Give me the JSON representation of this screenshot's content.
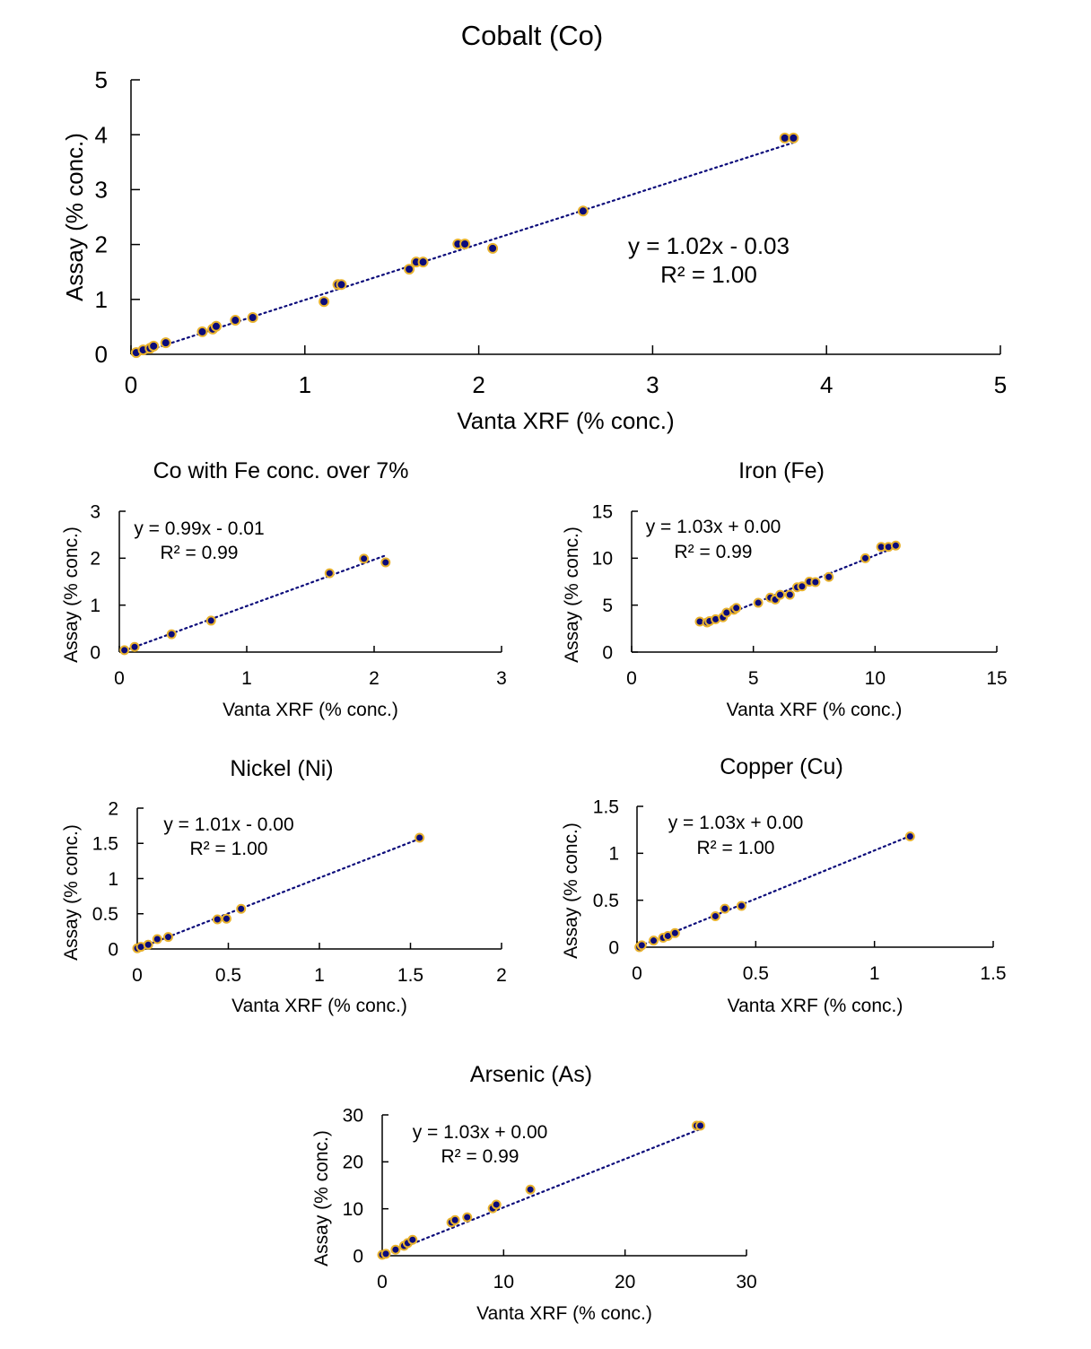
{
  "colors": {
    "point_fill": "#0b0b7a",
    "point_stroke": "#e8b22e",
    "trendline": "#0b0b7a",
    "axis": "#000000"
  },
  "chart_data": [
    {
      "id": "cobalt",
      "type": "scatter",
      "title": "Cobalt (Co)",
      "xlabel": "Vanta XRF (% conc.)",
      "ylabel": "Assay (% conc.)",
      "xlim": [
        0,
        5
      ],
      "ylim": [
        0,
        5
      ],
      "xticks": [
        "0",
        "1",
        "2",
        "3",
        "4",
        "5"
      ],
      "yticks": [
        "0",
        "1",
        "2",
        "3",
        "4",
        "5"
      ],
      "trendline": {
        "slope": 1.02,
        "intercept": -0.03,
        "style": "dotted"
      },
      "equation": "y = 1.02x - 0.03",
      "r2": "R² = 1.00",
      "points": [
        [
          0.03,
          0.03
        ],
        [
          0.07,
          0.08
        ],
        [
          0.11,
          0.11
        ],
        [
          0.13,
          0.15
        ],
        [
          0.2,
          0.21
        ],
        [
          0.41,
          0.41
        ],
        [
          0.47,
          0.46
        ],
        [
          0.49,
          0.51
        ],
        [
          0.6,
          0.62
        ],
        [
          0.7,
          0.67
        ],
        [
          1.11,
          0.96
        ],
        [
          1.19,
          1.27
        ],
        [
          1.21,
          1.27
        ],
        [
          1.6,
          1.55
        ],
        [
          1.64,
          1.68
        ],
        [
          1.68,
          1.68
        ],
        [
          1.88,
          2.01
        ],
        [
          1.92,
          2.01
        ],
        [
          2.08,
          1.93
        ],
        [
          2.6,
          2.61
        ],
        [
          3.76,
          3.94
        ],
        [
          3.81,
          3.94
        ]
      ]
    },
    {
      "id": "co-fe",
      "type": "scatter",
      "title": "Co with Fe conc. over 7%",
      "xlabel": "Vanta XRF (% conc.)",
      "ylabel": "Assay (% conc.)",
      "xlim": [
        0,
        3
      ],
      "ylim": [
        0,
        3
      ],
      "xticks": [
        "0",
        "1",
        "2",
        "3"
      ],
      "yticks": [
        "0",
        "1",
        "2",
        "3"
      ],
      "trendline": {
        "slope": 0.99,
        "intercept": -0.01,
        "style": "dotted"
      },
      "equation": "y = 0.99x - 0.01",
      "r2": "R² = 0.99",
      "points": [
        [
          0.04,
          0.04
        ],
        [
          0.12,
          0.11
        ],
        [
          0.41,
          0.38
        ],
        [
          0.72,
          0.67
        ],
        [
          1.65,
          1.68
        ],
        [
          1.92,
          1.99
        ],
        [
          2.09,
          1.91
        ]
      ]
    },
    {
      "id": "iron",
      "type": "scatter",
      "title": "Iron (Fe)",
      "xlabel": "Vanta XRF (% conc.)",
      "ylabel": "Assay (% conc.)",
      "xlim": [
        0,
        15
      ],
      "ylim": [
        0,
        15
      ],
      "xticks": [
        "0",
        "5",
        "10",
        "15"
      ],
      "yticks": [
        "0",
        "5",
        "10",
        "15"
      ],
      "trendline": {
        "slope": 1.03,
        "intercept": 0.0,
        "style": "dotted"
      },
      "equation": "y = 1.03x + 0.00",
      "r2": "R² = 0.99",
      "points": [
        [
          2.8,
          3.25
        ],
        [
          3.1,
          3.15
        ],
        [
          3.2,
          3.3
        ],
        [
          3.45,
          3.5
        ],
        [
          3.75,
          3.7
        ],
        [
          3.9,
          4.2
        ],
        [
          4.2,
          4.5
        ],
        [
          4.3,
          4.7
        ],
        [
          5.2,
          5.25
        ],
        [
          5.7,
          5.8
        ],
        [
          5.9,
          5.6
        ],
        [
          6.1,
          6.1
        ],
        [
          6.5,
          6.1
        ],
        [
          6.8,
          6.9
        ],
        [
          7.0,
          7.0
        ],
        [
          7.3,
          7.5
        ],
        [
          7.55,
          7.45
        ],
        [
          8.1,
          8.0
        ],
        [
          9.6,
          10.0
        ],
        [
          10.25,
          11.2
        ],
        [
          10.55,
          11.2
        ],
        [
          10.85,
          11.35
        ]
      ]
    },
    {
      "id": "nickel",
      "type": "scatter",
      "title": "Nickel (Ni)",
      "xlabel": "Vanta XRF (% conc.)",
      "ylabel": "Assay (% conc.)",
      "xlim": [
        0,
        2
      ],
      "ylim": [
        0,
        2
      ],
      "xticks": [
        "0",
        "0.5",
        "1",
        "1.5",
        "2"
      ],
      "yticks": [
        "0",
        "0.5",
        "1",
        "1.5",
        "2"
      ],
      "trendline": {
        "slope": 1.01,
        "intercept": 0.0,
        "style": "dotted"
      },
      "equation": "y = 1.01x - 0.00",
      "r2": "R² = 1.00",
      "points": [
        [
          0.0,
          0.01
        ],
        [
          0.02,
          0.03
        ],
        [
          0.06,
          0.06
        ],
        [
          0.11,
          0.14
        ],
        [
          0.17,
          0.17
        ],
        [
          0.44,
          0.42
        ],
        [
          0.49,
          0.43
        ],
        [
          0.57,
          0.57
        ],
        [
          1.55,
          1.58
        ]
      ]
    },
    {
      "id": "copper",
      "type": "scatter",
      "title": "Copper (Cu)",
      "xlabel": "Vanta XRF (% conc.)",
      "ylabel": "Assay (% conc.)",
      "xlim": [
        0,
        1.5
      ],
      "ylim": [
        0,
        1.5
      ],
      "xticks": [
        "0",
        "0.5",
        "1",
        "1.5"
      ],
      "yticks": [
        "0",
        "0.5",
        "1",
        "1.5"
      ],
      "trendline": {
        "slope": 1.03,
        "intercept": 0.0,
        "style": "dotted"
      },
      "equation": "y = 1.03x + 0.00",
      "r2": "R² = 1.00",
      "points": [
        [
          0.01,
          0.0
        ],
        [
          0.02,
          0.02
        ],
        [
          0.07,
          0.07
        ],
        [
          0.11,
          0.1
        ],
        [
          0.13,
          0.12
        ],
        [
          0.16,
          0.15
        ],
        [
          0.33,
          0.33
        ],
        [
          0.37,
          0.41
        ],
        [
          0.44,
          0.44
        ],
        [
          1.15,
          1.18
        ]
      ]
    },
    {
      "id": "arsenic",
      "type": "scatter",
      "title": "Arsenic (As)",
      "xlabel": "Vanta XRF (% conc.)",
      "ylabel": "Assay (% conc.)",
      "xlim": [
        0,
        30
      ],
      "ylim": [
        0,
        30
      ],
      "xticks": [
        "0",
        "10",
        "20",
        "30"
      ],
      "yticks": [
        "0",
        "10",
        "20",
        "30"
      ],
      "trendline": {
        "slope": 1.03,
        "intercept": 0.0,
        "style": "dotted"
      },
      "equation": "y = 1.03x + 0.00",
      "r2": "R² = 0.99",
      "points": [
        [
          0,
          0.2
        ],
        [
          0.3,
          0.4
        ],
        [
          1.1,
          1.3
        ],
        [
          1.8,
          2.1
        ],
        [
          2.1,
          2.7
        ],
        [
          2.5,
          3.4
        ],
        [
          5.7,
          7.1
        ],
        [
          6.0,
          7.6
        ],
        [
          7.0,
          8.2
        ],
        [
          9.1,
          10.1
        ],
        [
          9.4,
          10.9
        ],
        [
          12.2,
          14.1
        ],
        [
          25.9,
          27.7
        ],
        [
          26.2,
          27.7
        ]
      ]
    }
  ]
}
